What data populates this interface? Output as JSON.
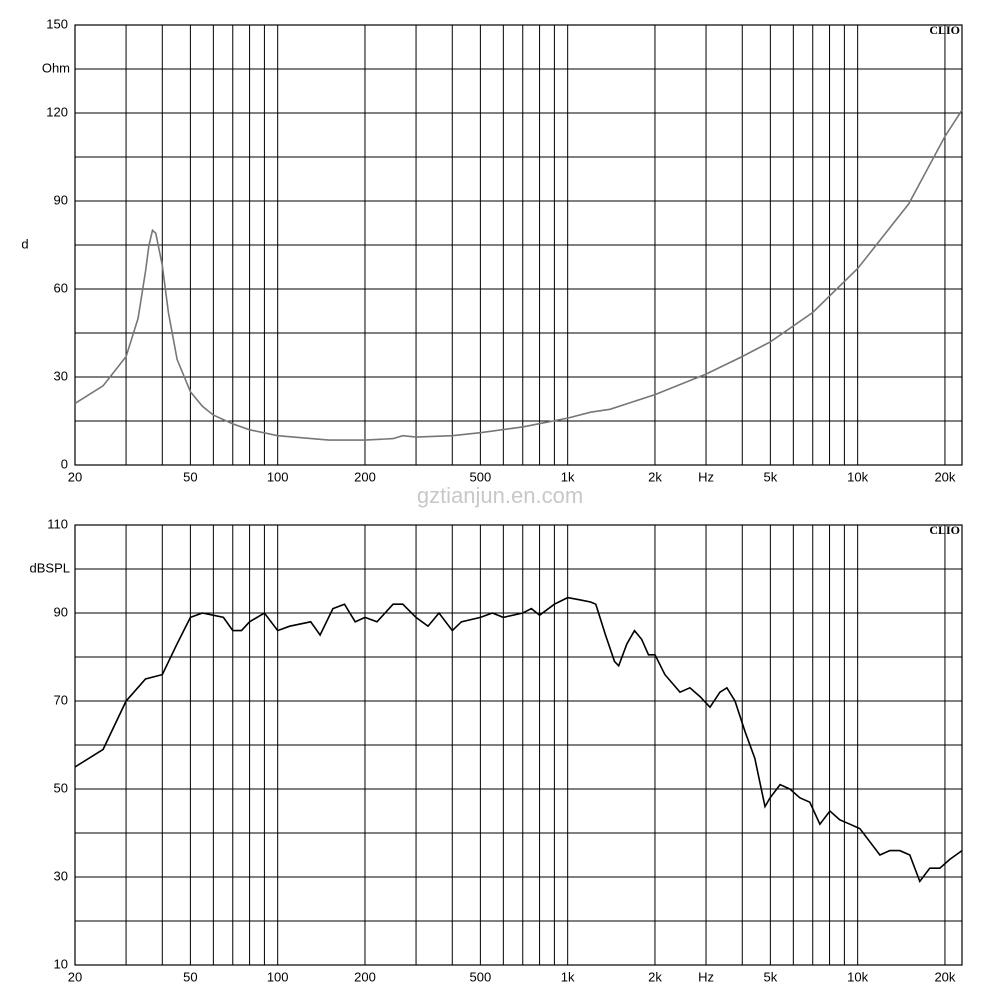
{
  "watermark": "gztianjun.en.com",
  "chart_data": [
    {
      "type": "line",
      "badge": "CLIO",
      "ylabel": "d",
      "yunit": "Ohm",
      "color": "#777777",
      "log_x": true,
      "xlim": [
        20,
        22900
      ],
      "ylim": [
        0,
        150
      ],
      "xticks": [
        20,
        50,
        100,
        200,
        500,
        {
          "value": 1000,
          "label": "1k"
        },
        {
          "value": 2000,
          "label": "2k"
        },
        {
          "value": 3000,
          "label": "Hz"
        },
        {
          "value": 5000,
          "label": "5k"
        },
        {
          "value": 10000,
          "label": "10k"
        },
        {
          "value": 20000,
          "label": "20k"
        }
      ],
      "xgrid": [
        30,
        40,
        60,
        70,
        80,
        90,
        300,
        400,
        600,
        700,
        800,
        900,
        4000,
        6000,
        7000,
        8000,
        9000
      ],
      "yticks": [
        0,
        30,
        60,
        90,
        120,
        150
      ],
      "ygrid": [
        15,
        45,
        75,
        105,
        135
      ],
      "x": [
        20,
        25,
        30,
        33,
        35,
        36,
        37,
        38,
        40,
        42,
        45,
        50,
        55,
        60,
        70,
        80,
        100,
        150,
        200,
        250,
        270,
        300,
        400,
        500,
        700,
        1000,
        1200,
        1400,
        2000,
        3000,
        4000,
        5000,
        7000,
        10000,
        15000,
        20000,
        22900
      ],
      "values": [
        21,
        27,
        37,
        50,
        66,
        75,
        80,
        79,
        68,
        52,
        36,
        25,
        20,
        17,
        14,
        12,
        10,
        8.5,
        8.5,
        9,
        10,
        9.5,
        10,
        11,
        13,
        16,
        18,
        19,
        24,
        31,
        37,
        42,
        52,
        67,
        89,
        112,
        121
      ]
    },
    {
      "type": "line",
      "badge": "CLIO",
      "yunit": "dBSPL",
      "color": "#000000",
      "log_x": true,
      "xlim": [
        20,
        22900
      ],
      "ylim": [
        10,
        110
      ],
      "xticks": [
        20,
        50,
        100,
        200,
        500,
        {
          "value": 1000,
          "label": "1k"
        },
        {
          "value": 2000,
          "label": "2k"
        },
        {
          "value": 3000,
          "label": "Hz"
        },
        {
          "value": 5000,
          "label": "5k"
        },
        {
          "value": 10000,
          "label": "10k"
        },
        {
          "value": 20000,
          "label": "20k"
        }
      ],
      "xgrid": [
        30,
        40,
        60,
        70,
        80,
        90,
        300,
        400,
        600,
        700,
        800,
        900,
        4000,
        6000,
        7000,
        8000,
        9000
      ],
      "yticks": [
        10,
        30,
        50,
        70,
        90,
        110
      ],
      "ygrid": [
        20,
        40,
        60,
        80,
        100
      ],
      "x": [
        20,
        25,
        30,
        35,
        40,
        45,
        50,
        55,
        65,
        70,
        75,
        80,
        90,
        100,
        110,
        130,
        140,
        155,
        170,
        185,
        200,
        220,
        250,
        270,
        300,
        330,
        360,
        400,
        430,
        500,
        550,
        600,
        700,
        750,
        800,
        900,
        1000,
        1100,
        1200,
        1250,
        1350,
        1450,
        1500,
        1600,
        1700,
        1800,
        1900,
        2000,
        2165,
        2440,
        2640,
        2860,
        3095,
        3350,
        3540,
        3775,
        4090,
        4420,
        4790,
        4990,
        5400,
        5840,
        6320,
        6840,
        7410,
        8020,
        8680,
        9400,
        10180,
        11020,
        11930,
        12910,
        13980,
        15130,
        16380,
        17730,
        19200,
        20790,
        22900
      ],
      "values": [
        55,
        59,
        70,
        75,
        76,
        83,
        89,
        90,
        89,
        86,
        86,
        88,
        90,
        86,
        87,
        88,
        85,
        91,
        92,
        88,
        89,
        88,
        92,
        92,
        89,
        87,
        90,
        86,
        88,
        89,
        90,
        89,
        90,
        91,
        89.5,
        92,
        93.5,
        93,
        92.5,
        92,
        85,
        79,
        78,
        83,
        86,
        84,
        80.5,
        80.5,
        76,
        72,
        73,
        71,
        68.6,
        72,
        73,
        70,
        63,
        57,
        46,
        48,
        51,
        50,
        48,
        47,
        42,
        45,
        43,
        42,
        41,
        38,
        35,
        36,
        36,
        35,
        29,
        32,
        32,
        34,
        36
      ]
    }
  ]
}
